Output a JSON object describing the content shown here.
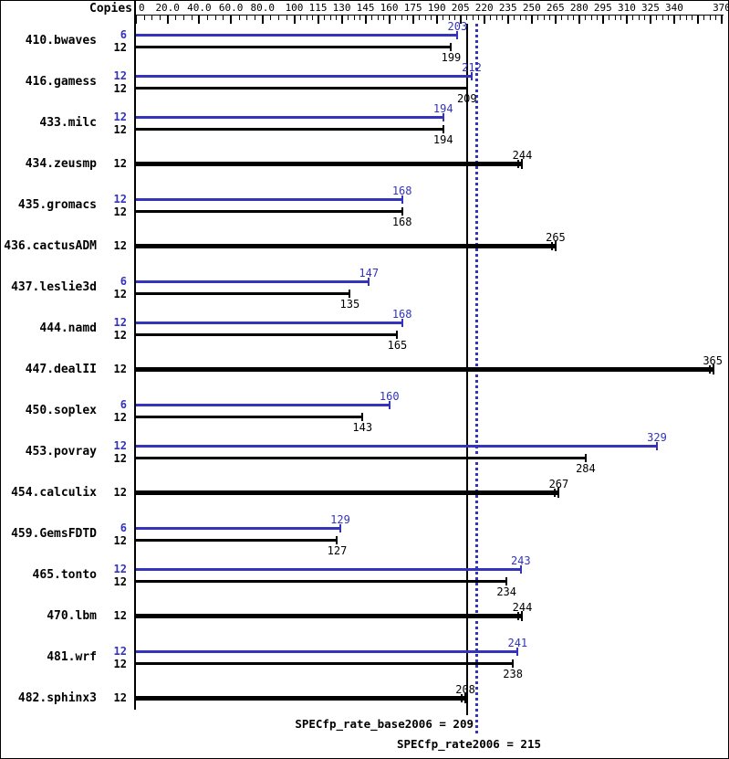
{
  "header": {
    "copies_label": "Copies"
  },
  "colors": {
    "peak_blue": "#3333bb",
    "base_black": "#000000"
  },
  "axis": {
    "majors": [
      {
        "v": 0,
        "label": "0"
      },
      {
        "v": 20,
        "label": "20.0"
      },
      {
        "v": 40,
        "label": "40.0"
      },
      {
        "v": 60,
        "label": "60.0"
      },
      {
        "v": 80,
        "label": "80.0"
      },
      {
        "v": 100,
        "label": "100"
      },
      {
        "v": 115,
        "label": "115"
      },
      {
        "v": 130,
        "label": "130"
      },
      {
        "v": 145,
        "label": "145"
      },
      {
        "v": 160,
        "label": "160"
      },
      {
        "v": 175,
        "label": "175"
      },
      {
        "v": 190,
        "label": "190"
      },
      {
        "v": 205,
        "label": "205"
      },
      {
        "v": 220,
        "label": "220"
      },
      {
        "v": 235,
        "label": "235"
      },
      {
        "v": 250,
        "label": "250"
      },
      {
        "v": 265,
        "label": "265"
      },
      {
        "v": 280,
        "label": "280"
      },
      {
        "v": 295,
        "label": "295"
      },
      {
        "v": 310,
        "label": "310"
      },
      {
        "v": 325,
        "label": "325"
      },
      {
        "v": 340,
        "label": "340"
      },
      {
        "v": 355,
        "label": ""
      },
      {
        "v": 370,
        "label": "370"
      }
    ],
    "minors_between_majors": 3,
    "range": [
      0,
      370
    ]
  },
  "reference_lines": {
    "base_value": 209,
    "peak_value": 215
  },
  "footer": {
    "base_text": "SPECfp_rate_base2006 = 209",
    "peak_text": "SPECfp_rate2006 = 215"
  },
  "benchmarks": [
    {
      "name": "410.bwaves",
      "bars": [
        {
          "kind": "peak",
          "copies": "6",
          "value": 203
        },
        {
          "kind": "base",
          "copies": "12",
          "value": 199
        }
      ]
    },
    {
      "name": "416.gamess",
      "bars": [
        {
          "kind": "peak",
          "copies": "12",
          "value": 212
        },
        {
          "kind": "base",
          "copies": "12",
          "value": 209
        }
      ]
    },
    {
      "name": "433.milc",
      "bars": [
        {
          "kind": "peak",
          "copies": "12",
          "value": 194
        },
        {
          "kind": "base",
          "copies": "12",
          "value": 194
        }
      ]
    },
    {
      "name": "434.zeusmp",
      "bars": [
        {
          "kind": "base-only",
          "copies": "12",
          "value": 244
        }
      ]
    },
    {
      "name": "435.gromacs",
      "bars": [
        {
          "kind": "peak",
          "copies": "12",
          "value": 168
        },
        {
          "kind": "base",
          "copies": "12",
          "value": 168
        }
      ]
    },
    {
      "name": "436.cactusADM",
      "bars": [
        {
          "kind": "base-only",
          "copies": "12",
          "value": 265
        }
      ]
    },
    {
      "name": "437.leslie3d",
      "bars": [
        {
          "kind": "peak",
          "copies": "6",
          "value": 147
        },
        {
          "kind": "base",
          "copies": "12",
          "value": 135
        }
      ]
    },
    {
      "name": "444.namd",
      "bars": [
        {
          "kind": "peak",
          "copies": "12",
          "value": 168
        },
        {
          "kind": "base",
          "copies": "12",
          "value": 165
        }
      ]
    },
    {
      "name": "447.dealII",
      "bars": [
        {
          "kind": "base-only",
          "copies": "12",
          "value": 365
        }
      ]
    },
    {
      "name": "450.soplex",
      "bars": [
        {
          "kind": "peak",
          "copies": "6",
          "value": 160
        },
        {
          "kind": "base",
          "copies": "12",
          "value": 143
        }
      ]
    },
    {
      "name": "453.povray",
      "bars": [
        {
          "kind": "peak",
          "copies": "12",
          "value": 329
        },
        {
          "kind": "base",
          "copies": "12",
          "value": 284
        }
      ]
    },
    {
      "name": "454.calculix",
      "bars": [
        {
          "kind": "base-only",
          "copies": "12",
          "value": 267
        }
      ]
    },
    {
      "name": "459.GemsFDTD",
      "bars": [
        {
          "kind": "peak",
          "copies": "6",
          "value": 129
        },
        {
          "kind": "base",
          "copies": "12",
          "value": 127
        }
      ]
    },
    {
      "name": "465.tonto",
      "bars": [
        {
          "kind": "peak",
          "copies": "12",
          "value": 243
        },
        {
          "kind": "base",
          "copies": "12",
          "value": 234
        }
      ]
    },
    {
      "name": "470.lbm",
      "bars": [
        {
          "kind": "base-only",
          "copies": "12",
          "value": 244
        }
      ]
    },
    {
      "name": "481.wrf",
      "bars": [
        {
          "kind": "peak",
          "copies": "12",
          "value": 241
        },
        {
          "kind": "base",
          "copies": "12",
          "value": 238
        }
      ]
    },
    {
      "name": "482.sphinx3",
      "bars": [
        {
          "kind": "base-only",
          "copies": "12",
          "value": 208
        }
      ]
    }
  ],
  "chart_data": {
    "type": "bar",
    "orientation": "horizontal",
    "title": "",
    "xlabel": "",
    "ylabel": "Copies",
    "x_axis_ticks": [
      0,
      20,
      40,
      60,
      80,
      100,
      115,
      130,
      145,
      160,
      175,
      190,
      205,
      220,
      235,
      250,
      265,
      280,
      295,
      310,
      325,
      340,
      355,
      370
    ],
    "xlim": [
      0,
      370
    ],
    "grid": false,
    "legend_position": "none",
    "categories": [
      "410.bwaves",
      "416.gamess",
      "433.milc",
      "434.zeusmp",
      "435.gromacs",
      "436.cactusADM",
      "437.leslie3d",
      "444.namd",
      "447.dealII",
      "450.soplex",
      "453.povray",
      "454.calculix",
      "459.GemsFDTD",
      "465.tonto",
      "470.lbm",
      "481.wrf",
      "482.sphinx3"
    ],
    "series": [
      {
        "name": "peak",
        "color": "#3333bb",
        "copies": [
          6,
          12,
          12,
          null,
          12,
          null,
          6,
          12,
          null,
          6,
          12,
          null,
          6,
          12,
          null,
          12,
          null
        ],
        "values": [
          203,
          212,
          194,
          null,
          168,
          null,
          147,
          168,
          null,
          160,
          329,
          null,
          129,
          243,
          null,
          241,
          null
        ]
      },
      {
        "name": "base",
        "color": "#000000",
        "copies": [
          12,
          12,
          12,
          12,
          12,
          12,
          12,
          12,
          12,
          12,
          12,
          12,
          12,
          12,
          12,
          12,
          12
        ],
        "values": [
          199,
          209,
          194,
          244,
          168,
          265,
          135,
          165,
          365,
          143,
          284,
          267,
          127,
          234,
          244,
          238,
          208
        ]
      }
    ],
    "annotations": {
      "SPECfp_rate_base2006": 209,
      "SPECfp_rate2006": 215
    }
  }
}
